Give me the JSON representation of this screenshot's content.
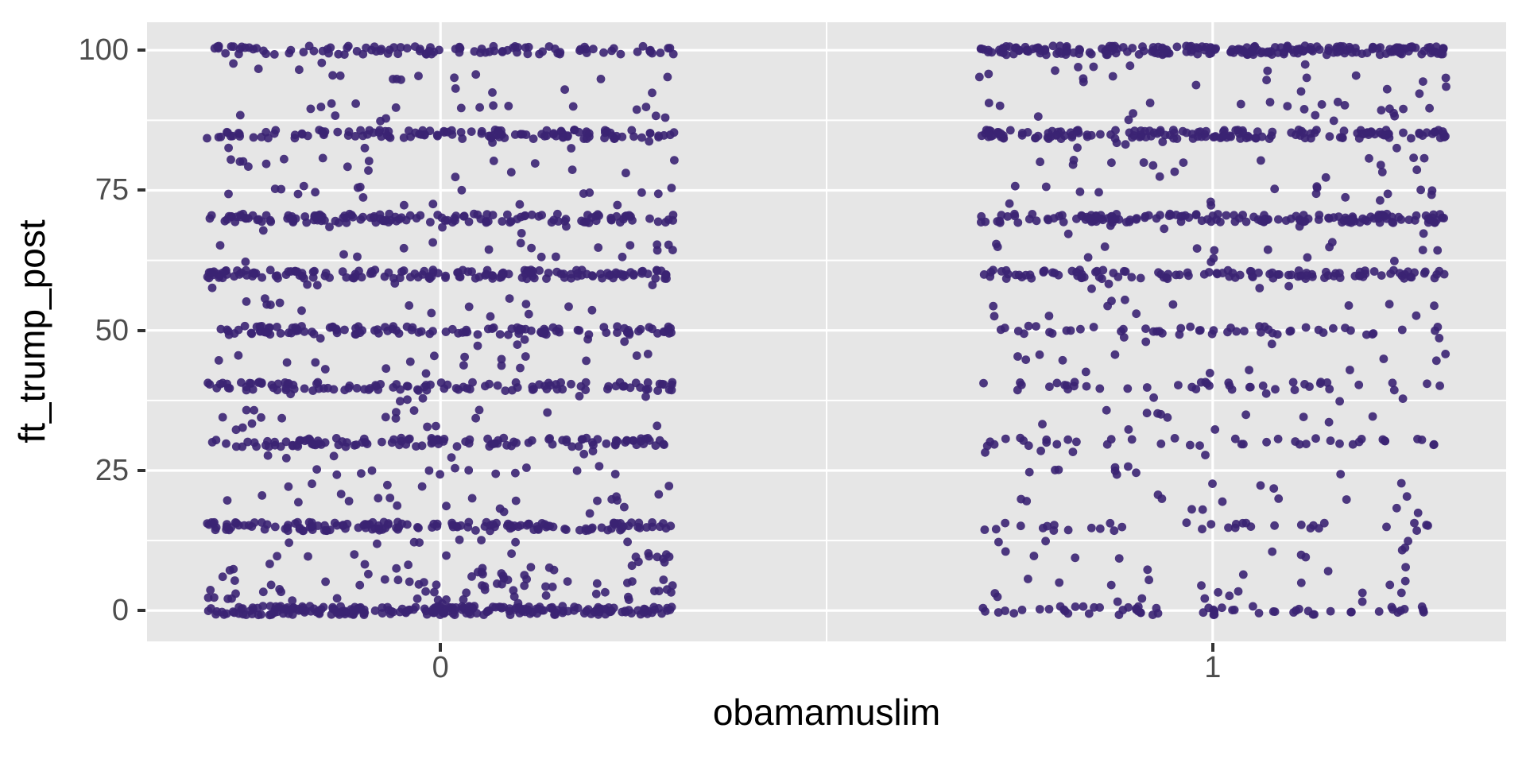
{
  "chart_data": {
    "type": "scatter",
    "subtype": "jittered-strip-plot",
    "title": "",
    "xlabel": "obamamuslim",
    "ylabel": "ft_trump_post",
    "x_tick_values": [
      0,
      1
    ],
    "x_tick_labels": [
      "0",
      "1"
    ],
    "y_tick_values": [
      0,
      25,
      50,
      75,
      100
    ],
    "y_tick_labels": [
      "0",
      "25",
      "50",
      "75",
      "100"
    ],
    "minor_x": [
      0.5
    ],
    "minor_y": [
      12.5,
      37.5,
      62.5,
      87.5
    ],
    "xlim": [
      -0.38,
      1.38
    ],
    "ylim": [
      -5.5,
      105
    ],
    "grid": true,
    "legend": "none",
    "jitter": {
      "width": 0.303,
      "height": 0.8
    },
    "point": {
      "radius": 5.4,
      "color": "#3B2473",
      "opacity": 0.9
    },
    "colors": {
      "panel_bg": "#E6E6E6",
      "grid": "#FFFFFF",
      "tick_label": "#4D4D4D",
      "axis_title": "#000000",
      "tick_mark": "#333333",
      "page_bg": "#FFFFFF"
    },
    "seed": 42,
    "series": [
      {
        "name": "obamamuslim = 0",
        "x": 0,
        "bands": [
          [
            0,
            230
          ],
          [
            2,
            16
          ],
          [
            3,
            12
          ],
          [
            4,
            8
          ],
          [
            5,
            18
          ],
          [
            6,
            8
          ],
          [
            7,
            10
          ],
          [
            8,
            8
          ],
          [
            10,
            12
          ],
          [
            12,
            8
          ],
          [
            15,
            148
          ],
          [
            18,
            6
          ],
          [
            20,
            14
          ],
          [
            22,
            5
          ],
          [
            25,
            14
          ],
          [
            28,
            6
          ],
          [
            30,
            118
          ],
          [
            33,
            6
          ],
          [
            35,
            12
          ],
          [
            38,
            6
          ],
          [
            40,
            112
          ],
          [
            43,
            6
          ],
          [
            45,
            12
          ],
          [
            48,
            6
          ],
          [
            50,
            118
          ],
          [
            53,
            5
          ],
          [
            55,
            10
          ],
          [
            58,
            5
          ],
          [
            60,
            158
          ],
          [
            63,
            6
          ],
          [
            65,
            12
          ],
          [
            68,
            5
          ],
          [
            70,
            138
          ],
          [
            73,
            5
          ],
          [
            75,
            14
          ],
          [
            78,
            5
          ],
          [
            80,
            12
          ],
          [
            83,
            5
          ],
          [
            85,
            128
          ],
          [
            88,
            6
          ],
          [
            90,
            12
          ],
          [
            93,
            4
          ],
          [
            95,
            10
          ],
          [
            97,
            4
          ],
          [
            100,
            104
          ]
        ]
      },
      {
        "name": "obamamuslim = 1",
        "x": 1,
        "bands": [
          [
            0,
            62
          ],
          [
            2,
            6
          ],
          [
            3,
            5
          ],
          [
            5,
            8
          ],
          [
            7,
            4
          ],
          [
            10,
            8
          ],
          [
            12,
            4
          ],
          [
            15,
            34
          ],
          [
            18,
            4
          ],
          [
            20,
            8
          ],
          [
            22,
            4
          ],
          [
            25,
            9
          ],
          [
            28,
            4
          ],
          [
            30,
            40
          ],
          [
            33,
            4
          ],
          [
            35,
            8
          ],
          [
            38,
            4
          ],
          [
            40,
            42
          ],
          [
            43,
            4
          ],
          [
            45,
            8
          ],
          [
            48,
            4
          ],
          [
            50,
            50
          ],
          [
            53,
            4
          ],
          [
            55,
            8
          ],
          [
            58,
            4
          ],
          [
            60,
            112
          ],
          [
            63,
            5
          ],
          [
            65,
            10
          ],
          [
            68,
            5
          ],
          [
            70,
            152
          ],
          [
            73,
            5
          ],
          [
            75,
            12
          ],
          [
            78,
            5
          ],
          [
            80,
            12
          ],
          [
            83,
            5
          ],
          [
            85,
            162
          ],
          [
            88,
            7
          ],
          [
            90,
            14
          ],
          [
            93,
            5
          ],
          [
            95,
            10
          ],
          [
            97,
            6
          ],
          [
            100,
            212
          ]
        ]
      }
    ]
  }
}
